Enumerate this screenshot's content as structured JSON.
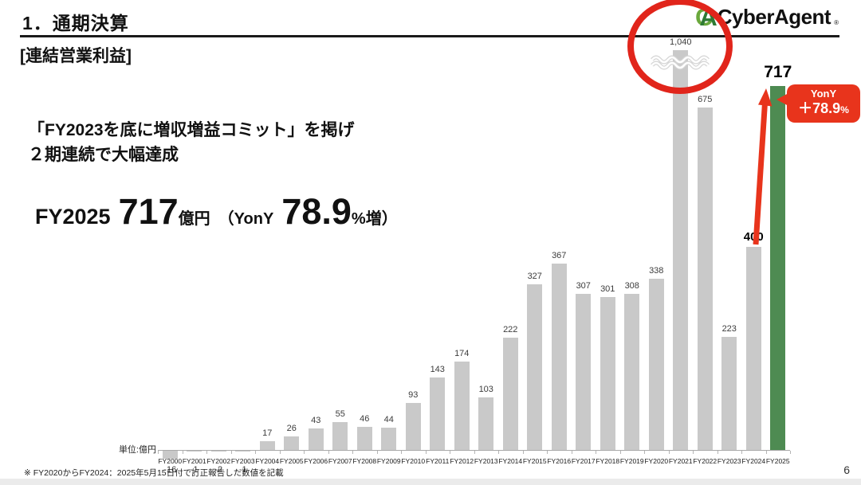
{
  "slide": {
    "title": "1．通期決算",
    "section_label": "[連結営業利益]",
    "headline_line1": "「FY2023を底に増収増益コミット」を掲げ",
    "headline_line2": "２期連続で大幅達成",
    "stats": {
      "prefix": "FY2025",
      "value": "717",
      "unit": "億円",
      "yony_open": "（YonY",
      "yony_value": "78.9",
      "yony_suffix": "%増）"
    },
    "footnote": "※ FY2020からFY2024：2025年5月15日付で訂正報告した数値を記載",
    "page_number": "6"
  },
  "logo": {
    "mark_letter1": "C",
    "mark_letter2": "A",
    "text": "CyberAgent",
    "registered": "®"
  },
  "badge": {
    "title": "YonY",
    "value": "＋78.9",
    "suffix": "%"
  },
  "chart_data": {
    "type": "bar",
    "title": "連結営業利益",
    "unit_label": "単位:億円",
    "categories": [
      "FY2000",
      "FY2001",
      "FY2002",
      "FY2003",
      "FY2004",
      "FY2005",
      "FY2006",
      "FY2007",
      "FY2008",
      "FY2009",
      "FY2010",
      "FY2011",
      "FY2012",
      "FY2013",
      "FY2014",
      "FY2015",
      "FY2016",
      "FY2017",
      "FY2018",
      "FY2019",
      "FY2020",
      "FY2021",
      "FY2022",
      "FY2023",
      "FY2024",
      "FY2025"
    ],
    "values": [
      -16,
      -1,
      -2,
      -1,
      17,
      26,
      43,
      55,
      46,
      44,
      93,
      143,
      174,
      103,
      222,
      327,
      367,
      307,
      301,
      308,
      338,
      1040,
      675,
      223,
      400,
      717
    ],
    "value_labels": [
      "-16",
      "-1",
      "-2",
      "-1",
      "17",
      "26",
      "43",
      "55",
      "46",
      "44",
      "93",
      "143",
      "174",
      "103",
      "222",
      "327",
      "367",
      "307",
      "301",
      "308",
      "338",
      "1,040",
      "675",
      "223",
      "400",
      "717"
    ],
    "ylim": [
      -50,
      1100
    ],
    "grid": false,
    "legend": "none",
    "bar_color": "#c9c9c9",
    "highlight": {
      "index": 25,
      "color": "#4e8b52"
    },
    "truncated": {
      "index": 21,
      "style": "axis-break-wavy-lines"
    },
    "emphasized_labels": {
      "24": "bold-md",
      "25": "bold-lg"
    },
    "negative_label_indices": [
      0,
      1,
      2,
      3
    ],
    "annotations": {
      "circle": {
        "target": "FY2021",
        "color": "#e1251b"
      },
      "arrow": {
        "from": "FY2024",
        "to": "FY2025",
        "color": "#e8341c"
      },
      "badge": {
        "text": "YonY ＋78.9%",
        "color": "#e8341c"
      }
    }
  },
  "colors": {
    "accent_red": "#e1251b",
    "arrow_red": "#e8341c",
    "bar_gray": "#c9c9c9",
    "bar_green": "#4e8b52",
    "logo_green_light": "#6aa83c",
    "logo_green_dark": "#2e7a35"
  }
}
